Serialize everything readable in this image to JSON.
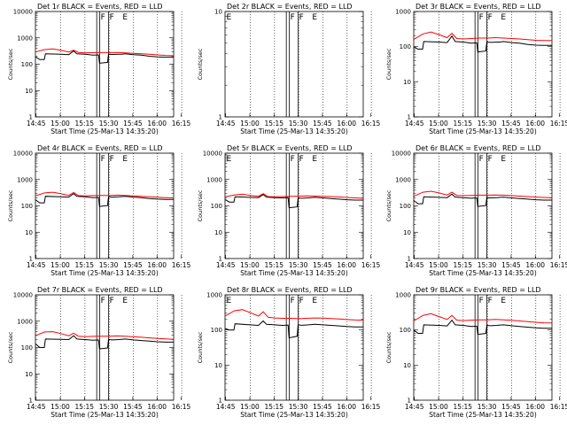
{
  "chart_data": [
    {
      "type": "line",
      "title": "Det 1r BLACK = Events, RED = LLD",
      "xlabel": "Start Time (25-Mar-13 14:35:20)",
      "ylabel": "Counts/sec",
      "x_ticks": [
        "14:45",
        "15:00",
        "15:15",
        "15:30",
        "15:45",
        "16:00",
        "16:15"
      ],
      "y_ticks": [
        "1",
        "10",
        "100",
        "1000",
        "10000"
      ],
      "ylim": [
        1,
        10000
      ],
      "yscale": "log",
      "xlim_minutes": [
        14.3,
        100
      ],
      "markers": [
        "F",
        "F",
        "E"
      ],
      "has_data": true,
      "series": [
        {
          "name": "Events",
          "color": "#000000",
          "x": [
            14.3,
            17,
            19.8,
            20.5,
            30,
            35,
            38,
            40,
            45,
            50,
            53.4,
            54,
            56,
            59,
            59.6,
            62,
            66,
            67.8,
            70,
            75,
            80,
            85,
            90,
            95,
            100
          ],
          "y": [
            190,
            150,
            150,
            250,
            240,
            230,
            320,
            250,
            240,
            220,
            225,
            110,
            112,
            118,
            240,
            235,
            240,
            240,
            250,
            230,
            220,
            200,
            190,
            185,
            185
          ]
        },
        {
          "name": "LLD",
          "color": "#ff0000",
          "x": [
            14.3,
            20,
            25,
            30,
            35,
            38,
            41,
            45,
            50,
            55,
            60,
            65,
            70,
            75,
            80,
            85,
            90,
            95,
            100
          ],
          "y": [
            290,
            360,
            380,
            340,
            290,
            340,
            280,
            270,
            275,
            275,
            275,
            280,
            270,
            260,
            250,
            240,
            225,
            215,
            210
          ]
        }
      ]
    },
    {
      "type": "line",
      "title": "Det 2r BLACK = Events, RED = LLD",
      "xlabel": "Start Time (25-Mar-13 14:35:20)",
      "ylabel": "Counts/sec",
      "x_ticks": [
        "14:45",
        "15:00",
        "15:15",
        "15:30",
        "15:45",
        "16:00",
        "16:15"
      ],
      "y_ticks": [
        "1",
        "10"
      ],
      "ylim": [
        1,
        10
      ],
      "yscale": "log",
      "xlim_minutes": [
        14.3,
        100
      ],
      "markers": [
        "E",
        "F",
        "F",
        "E"
      ],
      "has_data": false
    },
    {
      "type": "line",
      "title": "Det 3r BLACK = Events, RED = LLD",
      "xlabel": "Start Time (25-Mar-13 14:35:20)",
      "ylabel": "Counts/sec",
      "x_ticks": [
        "14:45",
        "15:00",
        "15:15",
        "15:30",
        "15:45",
        "16:00",
        "16:15"
      ],
      "y_ticks": [
        "1",
        "10",
        "100",
        "1000"
      ],
      "ylim": [
        1,
        1000
      ],
      "yscale": "log",
      "xlim_minutes": [
        14.3,
        100
      ],
      "markers": [
        "F",
        "F",
        "E"
      ],
      "has_data": true,
      "series": [
        {
          "name": "Events",
          "color": "#000000",
          "x": [
            14.3,
            17,
            19.8,
            20.5,
            30,
            35,
            38,
            40,
            45,
            50,
            53.4,
            54,
            56,
            59,
            59.6,
            62,
            66,
            67.8,
            70,
            75,
            80,
            85,
            90,
            95,
            100
          ],
          "y": [
            100,
            85,
            85,
            140,
            135,
            130,
            200,
            140,
            135,
            125,
            128,
            70,
            72,
            75,
            135,
            132,
            135,
            135,
            140,
            130,
            125,
            115,
            110,
            108,
            108
          ]
        },
        {
          "name": "LLD",
          "color": "#ff0000",
          "x": [
            14.3,
            20,
            25,
            30,
            35,
            38,
            41,
            45,
            50,
            55,
            60,
            65,
            70,
            75,
            80,
            85,
            90,
            95,
            100
          ],
          "y": [
            160,
            230,
            260,
            220,
            180,
            240,
            170,
            165,
            170,
            175,
            175,
            180,
            175,
            170,
            165,
            158,
            152,
            150,
            150
          ]
        }
      ]
    },
    {
      "type": "line",
      "title": "Det 4r BLACK = Events, RED = LLD",
      "xlabel": "Start Time (25-Mar-13 14:35:20)",
      "ylabel": "Counts/sec",
      "x_ticks": [
        "14:45",
        "15:00",
        "15:15",
        "15:30",
        "15:45",
        "16:00",
        "16:15"
      ],
      "y_ticks": [
        "1",
        "10",
        "100",
        "1000",
        "10000"
      ],
      "ylim": [
        1,
        10000
      ],
      "yscale": "log",
      "xlim_minutes": [
        14.3,
        100
      ],
      "markers": [
        "F",
        "F",
        "E"
      ],
      "has_data": true,
      "series": [
        {
          "name": "Events",
          "color": "#000000",
          "x": [
            14.3,
            17,
            19.8,
            20.5,
            30,
            35,
            38,
            40,
            45,
            50,
            53.4,
            54,
            56,
            59,
            59.6,
            62,
            66,
            67.8,
            70,
            75,
            80,
            85,
            90,
            95,
            100
          ],
          "y": [
            170,
            130,
            130,
            230,
            220,
            215,
            290,
            230,
            220,
            205,
            210,
            95,
            98,
            102,
            220,
            215,
            220,
            225,
            230,
            215,
            205,
            190,
            180,
            175,
            175
          ]
        },
        {
          "name": "LLD",
          "color": "#ff0000",
          "x": [
            14.3,
            20,
            25,
            30,
            35,
            38,
            41,
            45,
            50,
            55,
            60,
            65,
            70,
            75,
            80,
            85,
            90,
            95,
            100
          ],
          "y": [
            240,
            310,
            330,
            290,
            250,
            320,
            245,
            240,
            245,
            250,
            250,
            255,
            250,
            240,
            230,
            222,
            212,
            205,
            200
          ]
        }
      ]
    },
    {
      "type": "line",
      "title": "Det 5r BLACK = Events, RED = LLD",
      "xlabel": "Start Time (25-Mar-13 14:35:20)",
      "ylabel": "Counts/sec",
      "x_ticks": [
        "14:45",
        "15:00",
        "15:15",
        "15:30",
        "15:45",
        "16:00",
        "16:15"
      ],
      "y_ticks": [
        "1",
        "10",
        "100",
        "1000",
        "10000"
      ],
      "ylim": [
        1,
        10000
      ],
      "yscale": "log",
      "xlim_minutes": [
        14.3,
        100
      ],
      "markers": [
        "E",
        "F",
        "F",
        "E"
      ],
      "has_data": true,
      "series": [
        {
          "name": "Events",
          "color": "#000000",
          "x": [
            14.3,
            17,
            19.8,
            20.5,
            30,
            35,
            38,
            40,
            45,
            50,
            53.4,
            54,
            56,
            59,
            59.6,
            62,
            66,
            67.8,
            70,
            75,
            80,
            85,
            90,
            95,
            100
          ],
          "y": [
            175,
            140,
            140,
            220,
            210,
            205,
            270,
            215,
            205,
            200,
            205,
            85,
            88,
            92,
            200,
            195,
            200,
            205,
            210,
            200,
            190,
            180,
            170,
            165,
            165
          ]
        },
        {
          "name": "LLD",
          "color": "#ff0000",
          "x": [
            14.3,
            20,
            25,
            30,
            35,
            38,
            41,
            45,
            50,
            55,
            60,
            65,
            70,
            75,
            80,
            85,
            90,
            95,
            100
          ],
          "y": [
            220,
            260,
            280,
            250,
            230,
            290,
            225,
            220,
            225,
            230,
            235,
            240,
            235,
            230,
            225,
            218,
            208,
            200,
            195
          ]
        }
      ]
    },
    {
      "type": "line",
      "title": "Det 6r BLACK = Events, RED = LLD",
      "xlabel": "Start Time (25-Mar-13 14:35:20)",
      "ylabel": "Counts/sec",
      "x_ticks": [
        "14:45",
        "15:00",
        "15:15",
        "15:30",
        "15:45",
        "16:00",
        "16:15"
      ],
      "y_ticks": [
        "1",
        "10",
        "100",
        "1000",
        "10000"
      ],
      "ylim": [
        1,
        10000
      ],
      "yscale": "log",
      "xlim_minutes": [
        14.3,
        100
      ],
      "markers": [
        "F",
        "F",
        "E"
      ],
      "has_data": true,
      "series": [
        {
          "name": "Events",
          "color": "#000000",
          "x": [
            14.3,
            17,
            19.8,
            20.5,
            30,
            35,
            38,
            40,
            45,
            50,
            53.4,
            54,
            56,
            59,
            59.6,
            62,
            66,
            67.8,
            70,
            75,
            80,
            85,
            90,
            95,
            100
          ],
          "y": [
            160,
            120,
            120,
            220,
            210,
            205,
            280,
            215,
            205,
            195,
            200,
            95,
            98,
            102,
            205,
            200,
            205,
            210,
            215,
            200,
            190,
            180,
            170,
            165,
            165
          ]
        },
        {
          "name": "LLD",
          "color": "#ff0000",
          "x": [
            14.3,
            20,
            25,
            30,
            35,
            38,
            41,
            45,
            50,
            55,
            60,
            65,
            70,
            75,
            80,
            85,
            90,
            95,
            100
          ],
          "y": [
            230,
            330,
            360,
            310,
            260,
            330,
            250,
            245,
            250,
            255,
            255,
            260,
            255,
            245,
            235,
            225,
            215,
            208,
            205
          ]
        }
      ]
    },
    {
      "type": "line",
      "title": "Det 7r BLACK = Events, RED = LLD",
      "xlabel": "Start Time (25-Mar-13 14:35:20)",
      "ylabel": "Counts/sec",
      "x_ticks": [
        "14:45",
        "15:00",
        "15:15",
        "15:30",
        "15:45",
        "16:00",
        "16:15"
      ],
      "y_ticks": [
        "1",
        "10",
        "100",
        "1000",
        "10000"
      ],
      "ylim": [
        1,
        10000
      ],
      "yscale": "log",
      "xlim_minutes": [
        14.3,
        100
      ],
      "markers": [
        "F",
        "F",
        "E"
      ],
      "has_data": true,
      "series": [
        {
          "name": "Events",
          "color": "#000000",
          "x": [
            14.3,
            17,
            19.8,
            20.5,
            30,
            35,
            38,
            40,
            45,
            50,
            53.4,
            54,
            56,
            59,
            59.6,
            62,
            66,
            67.8,
            70,
            75,
            80,
            85,
            90,
            95,
            100
          ],
          "y": [
            140,
            100,
            100,
            210,
            205,
            200,
            280,
            210,
            200,
            190,
            195,
            90,
            92,
            96,
            200,
            195,
            200,
            205,
            210,
            195,
            185,
            175,
            165,
            160,
            160
          ]
        },
        {
          "name": "LLD",
          "color": "#ff0000",
          "x": [
            14.3,
            20,
            25,
            30,
            35,
            38,
            41,
            45,
            50,
            55,
            60,
            65,
            70,
            75,
            80,
            85,
            90,
            95,
            100
          ],
          "y": [
            280,
            390,
            400,
            340,
            280,
            350,
            270,
            260,
            265,
            270,
            270,
            275,
            268,
            255,
            245,
            232,
            220,
            212,
            205
          ]
        }
      ]
    },
    {
      "type": "line",
      "title": "Det 8r BLACK = Events, RED = LLD",
      "xlabel": "Start Time (25-Mar-13 14:35:20)",
      "ylabel": "Counts/sec",
      "x_ticks": [
        "14:45",
        "15:00",
        "15:15",
        "15:30",
        "15:45",
        "16:00",
        "16:15"
      ],
      "y_ticks": [
        "1",
        "10",
        "100",
        "1000"
      ],
      "ylim": [
        1,
        1000
      ],
      "yscale": "log",
      "xlim_minutes": [
        14.3,
        100
      ],
      "markers": [
        "E",
        "F",
        "F",
        "E"
      ],
      "has_data": true,
      "series": [
        {
          "name": "Events",
          "color": "#000000",
          "x": [
            14.3,
            17,
            19.8,
            20.5,
            30,
            35,
            38,
            40,
            45,
            50,
            53.4,
            54,
            56,
            59,
            59.6,
            62,
            66,
            67.8,
            70,
            75,
            80,
            85,
            90,
            95,
            100
          ],
          "y": [
            110,
            100,
            100,
            150,
            140,
            135,
            180,
            145,
            140,
            135,
            138,
            60,
            62,
            66,
            140,
            136,
            140,
            142,
            145,
            140,
            135,
            130,
            125,
            122,
            122
          ]
        },
        {
          "name": "LLD",
          "color": "#ff0000",
          "x": [
            14.3,
            20,
            25,
            30,
            35,
            38,
            41,
            45,
            50,
            55,
            60,
            65,
            70,
            75,
            80,
            85,
            90,
            95,
            100
          ],
          "y": [
            250,
            350,
            380,
            310,
            250,
            330,
            230,
            220,
            215,
            215,
            210,
            215,
            220,
            218,
            212,
            205,
            198,
            192,
            190
          ]
        }
      ]
    },
    {
      "type": "line",
      "title": "Det 9r BLACK = Events, RED = LLD",
      "xlabel": "Start Time (25-Mar-13 14:35:20)",
      "ylabel": "Counts/sec",
      "x_ticks": [
        "14:45",
        "15:00",
        "15:15",
        "15:30",
        "15:45",
        "16:00",
        "16:15"
      ],
      "y_ticks": [
        "1",
        "10",
        "100",
        "1000"
      ],
      "ylim": [
        1,
        1000
      ],
      "yscale": "log",
      "xlim_minutes": [
        14.3,
        100
      ],
      "markers": [
        "F",
        "F",
        "E"
      ],
      "has_data": true,
      "series": [
        {
          "name": "Events",
          "color": "#000000",
          "x": [
            14.3,
            17,
            19.8,
            20.5,
            30,
            35,
            38,
            40,
            45,
            50,
            53.4,
            54,
            56,
            59,
            59.6,
            62,
            66,
            67.8,
            70,
            75,
            80,
            85,
            90,
            95,
            100
          ],
          "y": [
            100,
            80,
            80,
            140,
            135,
            130,
            190,
            140,
            135,
            125,
            128,
            75,
            77,
            80,
            135,
            132,
            135,
            138,
            140,
            132,
            126,
            120,
            115,
            112,
            112
          ]
        },
        {
          "name": "LLD",
          "color": "#ff0000",
          "x": [
            14.3,
            20,
            25,
            30,
            35,
            38,
            41,
            45,
            50,
            55,
            60,
            65,
            70,
            75,
            80,
            85,
            90,
            95,
            100
          ],
          "y": [
            180,
            260,
            290,
            240,
            200,
            260,
            190,
            185,
            190,
            195,
            195,
            200,
            195,
            188,
            180,
            172,
            165,
            160,
            158
          ]
        }
      ]
    }
  ]
}
